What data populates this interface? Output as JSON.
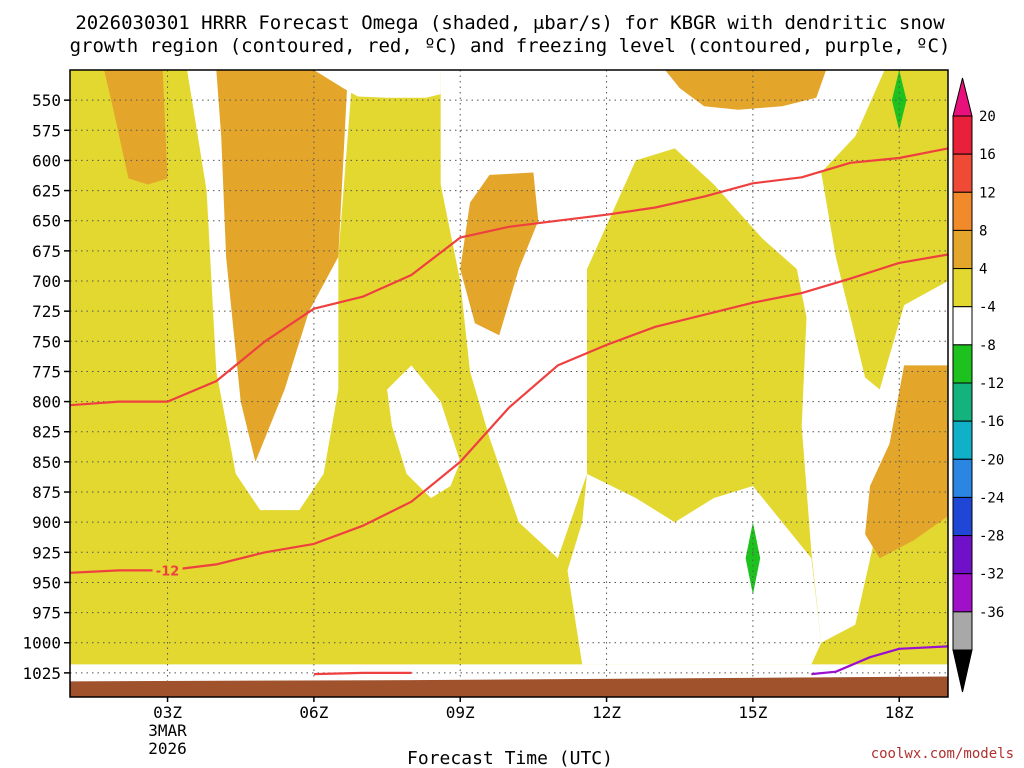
{
  "chart_data": {
    "type": "contour",
    "title_line1": "2026030301 HRRR Forecast Omega (shaded, μbar/s) for KBGR with dendritic snow",
    "title_line2": "growth region (contoured, red, ºC) and freezing level (contoured, purple, ºC)",
    "xlabel": "Forecast Time (UTC)",
    "credit": "coolwx.com/models",
    "x_ticks": [
      {
        "label": "03Z",
        "sub1": "3MAR",
        "sub2": "2026",
        "hour": 3
      },
      {
        "label": "06Z",
        "hour": 6
      },
      {
        "label": "09Z",
        "hour": 9
      },
      {
        "label": "12Z",
        "hour": 12
      },
      {
        "label": "15Z",
        "hour": 15
      },
      {
        "label": "18Z",
        "hour": 18
      }
    ],
    "xlim_hours": [
      1,
      19
    ],
    "y_ticks": [
      550,
      575,
      600,
      625,
      650,
      675,
      700,
      725,
      750,
      775,
      800,
      825,
      850,
      875,
      900,
      925,
      950,
      975,
      1000,
      1025
    ],
    "ylim_mb": [
      525,
      1045
    ],
    "colorbar": {
      "ticks": [
        "20",
        "16",
        "12",
        "8",
        "4",
        "-4",
        "-8",
        "-12",
        "-16",
        "-20",
        "-24",
        "-28",
        "-32",
        "-36"
      ],
      "colors": [
        "#e8203a",
        "#ef4a35",
        "#f08a2b",
        "#e3a62b",
        "#e3d830",
        "#ffffff",
        "#1ec21e",
        "#14b37e",
        "#10b0c8",
        "#2a86e0",
        "#2046d6",
        "#7010c8",
        "#a010c8",
        "#a8a8a8"
      ],
      "top_color": "#e8107a",
      "bottom_color": "#000000"
    },
    "contour_labels": [
      {
        "text": "-12",
        "hour": 3.0,
        "mb": 940
      }
    ],
    "series": [
      {
        "name": "-12 isotherm upper",
        "color": "#ef4040",
        "points": [
          [
            1,
            803
          ],
          [
            2,
            800
          ],
          [
            3,
            800
          ],
          [
            4,
            783
          ],
          [
            5,
            750
          ],
          [
            6,
            723
          ],
          [
            7,
            713
          ],
          [
            8,
            695
          ],
          [
            9,
            664
          ],
          [
            10,
            655
          ],
          [
            11,
            650
          ],
          [
            12,
            645
          ],
          [
            13,
            639
          ],
          [
            14,
            630
          ],
          [
            15,
            619
          ],
          [
            16,
            614
          ],
          [
            17,
            602
          ],
          [
            18,
            598
          ],
          [
            19,
            590
          ]
        ]
      },
      {
        "name": "-12 isotherm lower",
        "color": "#ef4040",
        "points": [
          [
            1,
            942
          ],
          [
            2,
            940
          ],
          [
            3,
            940
          ],
          [
            4,
            935
          ],
          [
            5,
            925
          ],
          [
            6,
            918
          ],
          [
            7,
            903
          ],
          [
            8,
            883
          ],
          [
            9,
            850
          ],
          [
            10,
            805
          ],
          [
            11,
            770
          ],
          [
            12,
            753
          ],
          [
            13,
            738
          ],
          [
            14,
            728
          ],
          [
            15,
            718
          ],
          [
            16,
            710
          ],
          [
            17,
            698
          ],
          [
            18,
            685
          ],
          [
            19,
            678
          ]
        ]
      },
      {
        "name": "surface isotherm",
        "color": "#ef4040",
        "points": [
          [
            6,
            1026
          ],
          [
            7,
            1025
          ],
          [
            8,
            1025
          ]
        ]
      },
      {
        "name": "freezing level",
        "color": "#9a10d0",
        "points": [
          [
            16.2,
            1026
          ],
          [
            16.7,
            1024
          ],
          [
            17.4,
            1012
          ],
          [
            18,
            1005
          ],
          [
            19,
            1003
          ]
        ]
      }
    ],
    "omega_regions": [
      {
        "level": "4 to 8",
        "color": "#e3d830",
        "points": [
          [
            1.3,
            525
          ],
          [
            3.4,
            525
          ],
          [
            3.8,
            625
          ],
          [
            4.0,
            775
          ],
          [
            4.4,
            860
          ],
          [
            4.9,
            890
          ],
          [
            5.7,
            890
          ],
          [
            6.2,
            860
          ],
          [
            6.5,
            790
          ],
          [
            6.5,
            680
          ],
          [
            6.8,
            525
          ],
          [
            8.6,
            525
          ],
          [
            8.6,
            620
          ],
          [
            9.0,
            700
          ],
          [
            9.2,
            775
          ],
          [
            9.6,
            830
          ],
          [
            10.2,
            900
          ],
          [
            11.0,
            930
          ],
          [
            11.6,
            860
          ],
          [
            11.6,
            690
          ],
          [
            12.6,
            600
          ],
          [
            13.4,
            590
          ],
          [
            14.2,
            620
          ],
          [
            15.2,
            665
          ],
          [
            15.9,
            690
          ],
          [
            16.1,
            730
          ],
          [
            16.0,
            820
          ],
          [
            16.2,
            925
          ],
          [
            16.4,
            1000
          ],
          [
            17.1,
            985
          ],
          [
            17.6,
            895
          ],
          [
            18.7,
            865
          ],
          [
            19,
            860
          ],
          [
            19,
            700
          ],
          [
            18.1,
            720
          ],
          [
            17.6,
            790
          ],
          [
            17.3,
            780
          ],
          [
            16.7,
            680
          ],
          [
            16.4,
            610
          ],
          [
            17.1,
            580
          ],
          [
            17.7,
            525
          ],
          [
            19,
            525
          ],
          [
            19,
            1018
          ],
          [
            1,
            1018
          ],
          [
            1,
            525
          ]
        ]
      },
      {
        "level": "8 to 12",
        "color": "#e3a62b",
        "points": [
          [
            1.7,
            525
          ],
          [
            2.9,
            525
          ],
          [
            3.0,
            615
          ],
          [
            2.6,
            620
          ],
          [
            2.2,
            615
          ],
          [
            1.9,
            560
          ]
        ]
      },
      {
        "level": "8 to 12",
        "color": "#e3a62b",
        "points": [
          [
            4.0,
            525
          ],
          [
            6.7,
            525
          ],
          [
            6.5,
            680
          ],
          [
            5.9,
            725
          ],
          [
            5.4,
            790
          ],
          [
            4.8,
            850
          ],
          [
            4.5,
            800
          ],
          [
            4.2,
            680
          ],
          [
            4.1,
            580
          ]
        ]
      },
      {
        "level": "8 to 12",
        "color": "#e3a62b",
        "points": [
          [
            9.6,
            612
          ],
          [
            10.5,
            610
          ],
          [
            10.6,
            650
          ],
          [
            10.2,
            690
          ],
          [
            9.8,
            745
          ],
          [
            9.3,
            735
          ],
          [
            9.0,
            690
          ],
          [
            9.2,
            635
          ]
        ]
      },
      {
        "level": "8 to 12",
        "color": "#e3a62b",
        "points": [
          [
            13.2,
            525
          ],
          [
            16.5,
            525
          ],
          [
            16.3,
            548
          ],
          [
            15.6,
            555
          ],
          [
            14.7,
            558
          ],
          [
            14.0,
            555
          ],
          [
            13.5,
            540
          ]
        ]
      },
      {
        "level": "8 to 12",
        "color": "#e3a62b",
        "points": [
          [
            18.1,
            770
          ],
          [
            19,
            770
          ],
          [
            19,
            895
          ],
          [
            18.3,
            915
          ],
          [
            17.6,
            930
          ],
          [
            17.3,
            910
          ],
          [
            17.4,
            870
          ],
          [
            17.8,
            835
          ]
        ]
      },
      {
        "level": "-4 to 4",
        "color": "#ffffff",
        "points": [
          [
            6.0,
            525
          ],
          [
            8.6,
            525
          ],
          [
            8.6,
            545
          ],
          [
            8.3,
            548
          ],
          [
            7.5,
            548
          ],
          [
            6.9,
            547
          ],
          [
            6.6,
            540
          ]
        ]
      },
      {
        "level": "-4 to 4",
        "color": "#ffffff",
        "points": [
          [
            7.5,
            790
          ],
          [
            8.0,
            770
          ],
          [
            8.6,
            800
          ],
          [
            9.0,
            850
          ],
          [
            8.8,
            870
          ],
          [
            8.4,
            880
          ],
          [
            7.9,
            860
          ],
          [
            7.6,
            820
          ]
        ]
      },
      {
        "level": "-4 to 4",
        "color": "#ffffff",
        "points": [
          [
            11.6,
            860
          ],
          [
            12.6,
            880
          ],
          [
            13.4,
            900
          ],
          [
            14.2,
            880
          ],
          [
            15.0,
            870
          ],
          [
            15.6,
            900
          ],
          [
            16.0,
            920
          ],
          [
            16.2,
            930
          ],
          [
            16.4,
            1000
          ],
          [
            16.2,
            1018
          ],
          [
            13.0,
            1018
          ],
          [
            11.5,
            1018
          ],
          [
            11.2,
            940
          ],
          [
            11.5,
            900
          ]
        ]
      },
      {
        "level": "-4 to -8",
        "color": "#1ec21e",
        "points": [
          [
            18.0,
            525
          ],
          [
            18.15,
            550
          ],
          [
            18.0,
            575
          ],
          [
            17.85,
            550
          ]
        ]
      },
      {
        "level": "-4 to -8",
        "color": "#1ec21e",
        "points": [
          [
            15.0,
            900
          ],
          [
            15.15,
            930
          ],
          [
            15.0,
            960
          ],
          [
            14.85,
            930
          ]
        ]
      }
    ]
  }
}
